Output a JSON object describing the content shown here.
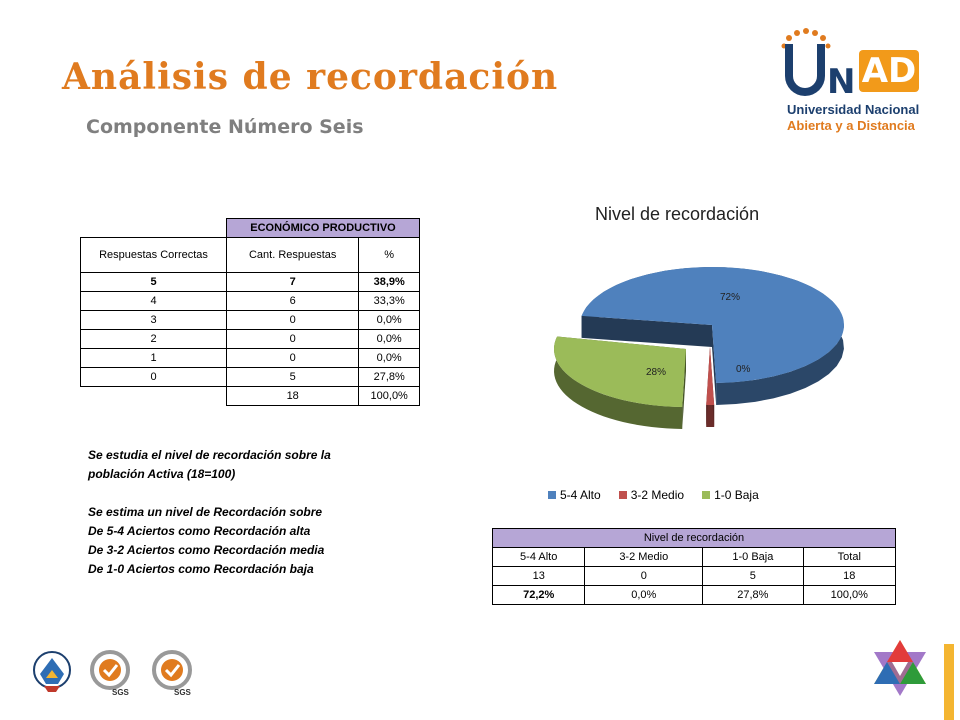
{
  "header": {
    "title": "Análisis  de recordación",
    "subtitle": "Componente Número Seis"
  },
  "logo": {
    "text_u": "U",
    "text_n": "N",
    "text_ad": "AD",
    "line1": "Universidad Nacional",
    "line2": "Abierta y a Distancia",
    "colors": {
      "navy": "#1c3f6e",
      "orange": "#e07b1f"
    }
  },
  "table1": {
    "title": "ECONÓMICO PRODUCTIVO",
    "headers": [
      "Respuestas Correctas",
      "Cant. Respuestas",
      "%"
    ],
    "rows": [
      [
        "5",
        "7",
        "38,9%"
      ],
      [
        "4",
        "6",
        "33,3%"
      ],
      [
        "3",
        "0",
        "0,0%"
      ],
      [
        "2",
        "0",
        "0,0%"
      ],
      [
        "1",
        "0",
        "0,0%"
      ],
      [
        "0",
        "5",
        "27,8%"
      ]
    ],
    "total": [
      "18",
      "100,0%"
    ]
  },
  "notes": [
    "Se estudia el nivel de recordación sobre la",
    "población   Activa (18=100)",
    "",
    " Se estima un nivel de Recordación sobre",
    "De 5-4  Aciertos como Recordación alta",
    "De 3-2 Aciertos como Recordación media",
    "De 1-0 Aciertos como Recordación baja"
  ],
  "chart_data": {
    "type": "pie",
    "title": "Nivel de recordación",
    "categories": [
      "5-4 Alto",
      "3-2 Medio",
      "1-0 Baja"
    ],
    "values": [
      72,
      0,
      28
    ],
    "data_labels": [
      "72%",
      "0%",
      "28%"
    ],
    "colors": [
      "#4f81bd",
      "#c0504d",
      "#9bbb59"
    ],
    "legend_position": "bottom",
    "style": "3d-exploded"
  },
  "table2": {
    "title": "Nivel de recordación",
    "headers": [
      "5-4 Alto",
      "3-2 Medio",
      "1-0 Baja",
      "Total"
    ],
    "counts": [
      "13",
      "0",
      "5",
      "18"
    ],
    "percents": [
      "72,2%",
      "0,0%",
      "27,8%",
      "100,0%"
    ]
  },
  "footer": {
    "seal_labels": [
      "SGS",
      "SGS"
    ],
    "accent_color": "#f4b531"
  }
}
